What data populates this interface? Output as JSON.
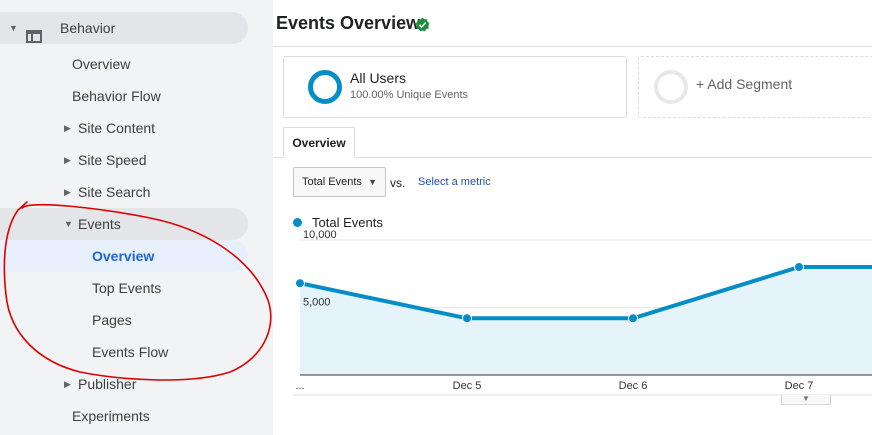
{
  "sidebar": {
    "behavior": "Behavior",
    "items": {
      "overview": "Overview",
      "behavior_flow": "Behavior Flow",
      "site_content": "Site Content",
      "site_speed": "Site Speed",
      "site_search": "Site Search",
      "events": "Events",
      "events_overview": "Overview",
      "top_events": "Top Events",
      "pages": "Pages",
      "events_flow": "Events Flow",
      "publisher": "Publisher",
      "experiments": "Experiments"
    }
  },
  "header": {
    "title": "Events Overview"
  },
  "segments": {
    "all_users": {
      "name": "All Users",
      "sub": "100.00% Unique Events",
      "color": "#058dc7"
    },
    "add_segment": "+ Add Segment"
  },
  "tabs": {
    "overview": "Overview"
  },
  "controls": {
    "metric": "Total Events",
    "vs": "vs.",
    "select_metric": "Select a metric"
  },
  "chart_data": {
    "type": "area",
    "series": [
      {
        "name": "Total Events",
        "color": "#058dc7",
        "values": [
          6800,
          4200,
          4200,
          8000,
          8000
        ]
      }
    ],
    "x_tick_labels": [
      "...",
      "Dec 5",
      "Dec 6",
      "Dec 7"
    ],
    "y_tick_labels": [
      "10,000",
      "5,000"
    ],
    "ylim": [
      0,
      10000
    ]
  },
  "colors": {
    "accent": "#058dc7",
    "active_nav": "#1967d2",
    "annotation": "#e00000",
    "verified": "#1e8e3e"
  }
}
